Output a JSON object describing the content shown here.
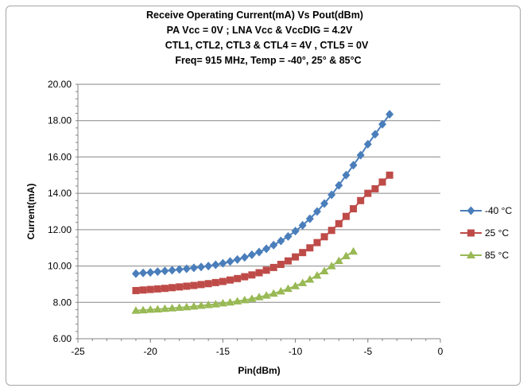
{
  "chart_data": {
    "type": "scatter",
    "title_lines": [
      "Receive Operating Current(mA) Vs Pout(dBm)",
      "PA Vcc = 0V ; LNA Vcc & VccDIG = 4.2V",
      "CTL1, CTL2, CTL3 & CTL4 = 4V , CTL5 = 0V",
      "Freq= 915 MHz, Temp = -40°, 25° & 85°C"
    ],
    "xlabel": "Pin(dBm)",
    "ylabel": "Current(mA)",
    "xlim": [
      -25,
      0
    ],
    "ylim": [
      6.0,
      20.0
    ],
    "x_ticks": [
      "-25",
      "-20",
      "-15",
      "-10",
      "-5",
      "0"
    ],
    "y_ticks": [
      "6.00",
      "8.00",
      "10.00",
      "12.00",
      "14.00",
      "16.00",
      "18.00",
      "20.00"
    ],
    "grid": "horizontal",
    "legend_position": "right",
    "series": [
      {
        "name": "-40 °C",
        "color": "#4a7ebb",
        "marker": "diamond",
        "x": [
          -21,
          -20.5,
          -20,
          -19.5,
          -19,
          -18.5,
          -18,
          -17.5,
          -17,
          -16.5,
          -16,
          -15.5,
          -15,
          -14.5,
          -14,
          -13.5,
          -13,
          -12.5,
          -12,
          -11.5,
          -11,
          -10.5,
          -10,
          -9.5,
          -9,
          -8.5,
          -8,
          -7.5,
          -7,
          -6.5,
          -6,
          -5.5,
          -5,
          -4.5,
          -4,
          -3.5
        ],
        "y": [
          9.58,
          9.62,
          9.65,
          9.69,
          9.73,
          9.77,
          9.81,
          9.85,
          9.9,
          9.95,
          10.0,
          10.07,
          10.15,
          10.25,
          10.36,
          10.48,
          10.62,
          10.77,
          10.95,
          11.15,
          11.38,
          11.63,
          11.92,
          12.24,
          12.6,
          13.0,
          13.44,
          13.92,
          14.44,
          15.0,
          15.55,
          16.1,
          16.7,
          17.25,
          17.8,
          18.35
        ]
      },
      {
        "name": "25 °C",
        "color": "#be4b48",
        "marker": "square",
        "x": [
          -21,
          -20.5,
          -20,
          -19.5,
          -19,
          -18.5,
          -18,
          -17.5,
          -17,
          -16.5,
          -16,
          -15.5,
          -15,
          -14.5,
          -14,
          -13.5,
          -13,
          -12.5,
          -12,
          -11.5,
          -11,
          -10.5,
          -10,
          -9.5,
          -9,
          -8.5,
          -8,
          -7.5,
          -7,
          -6.5,
          -6,
          -5.5,
          -5,
          -4.5,
          -4,
          -3.5
        ],
        "y": [
          8.65,
          8.68,
          8.71,
          8.74,
          8.77,
          8.81,
          8.85,
          8.89,
          8.93,
          8.98,
          9.03,
          9.09,
          9.15,
          9.23,
          9.31,
          9.41,
          9.51,
          9.63,
          9.77,
          9.92,
          10.09,
          10.28,
          10.5,
          10.74,
          11.0,
          11.29,
          11.61,
          11.96,
          12.33,
          12.73,
          13.15,
          13.6,
          14.0,
          14.25,
          14.62,
          15.0
        ]
      },
      {
        "name": "85 °C",
        "color": "#98b954",
        "marker": "triangle",
        "x": [
          -21,
          -20.5,
          -20,
          -19.5,
          -19,
          -18.5,
          -18,
          -17.5,
          -17,
          -16.5,
          -16,
          -15.5,
          -15,
          -14.5,
          -14,
          -13.5,
          -13,
          -12.5,
          -12,
          -11.5,
          -11,
          -10.5,
          -10,
          -9.5,
          -9,
          -8.5,
          -8,
          -7.5,
          -7,
          -6.5,
          -6
        ],
        "y": [
          7.55,
          7.57,
          7.6,
          7.62,
          7.65,
          7.68,
          7.71,
          7.74,
          7.78,
          7.82,
          7.86,
          7.9,
          7.95,
          8.0,
          8.06,
          8.13,
          8.2,
          8.29,
          8.38,
          8.49,
          8.61,
          8.75,
          8.9,
          9.07,
          9.26,
          9.48,
          9.72,
          10.0,
          10.28,
          10.55,
          10.8
        ]
      }
    ]
  }
}
